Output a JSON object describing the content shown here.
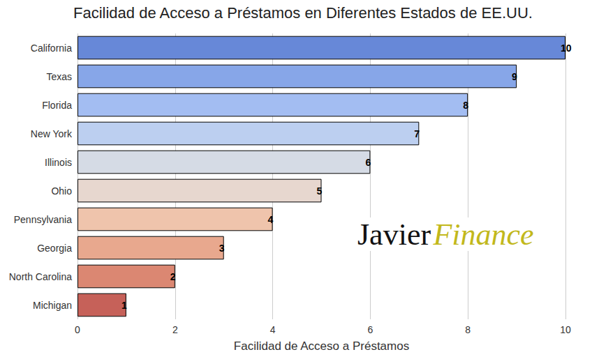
{
  "chart_data": {
    "type": "bar",
    "orientation": "horizontal",
    "title": "Facilidad de Acceso a Préstamos en Diferentes Estados de EE.UU.",
    "x_label": "Facilidad de Acceso a Préstamos",
    "categories": [
      "California",
      "Texas",
      "Florida",
      "New York",
      "Illinois",
      "Ohio",
      "Pennsylvania",
      "Georgia",
      "North Carolina",
      "Michigan"
    ],
    "values": [
      10,
      9,
      8,
      7,
      6,
      5,
      4,
      3,
      2,
      1
    ],
    "colors": [
      "#6788d8",
      "#87a6e8",
      "#a3bdf2",
      "#bccff0",
      "#d5dbe5",
      "#e7d7cf",
      "#efc4ac",
      "#e8a88e",
      "#db8772",
      "#c66159"
    ],
    "xlim": [
      0,
      10
    ],
    "xticks": [
      0,
      2,
      4,
      6,
      8,
      10
    ],
    "grid": true,
    "data_labels": true,
    "annotations": [
      "Javier",
      "Finance"
    ]
  }
}
